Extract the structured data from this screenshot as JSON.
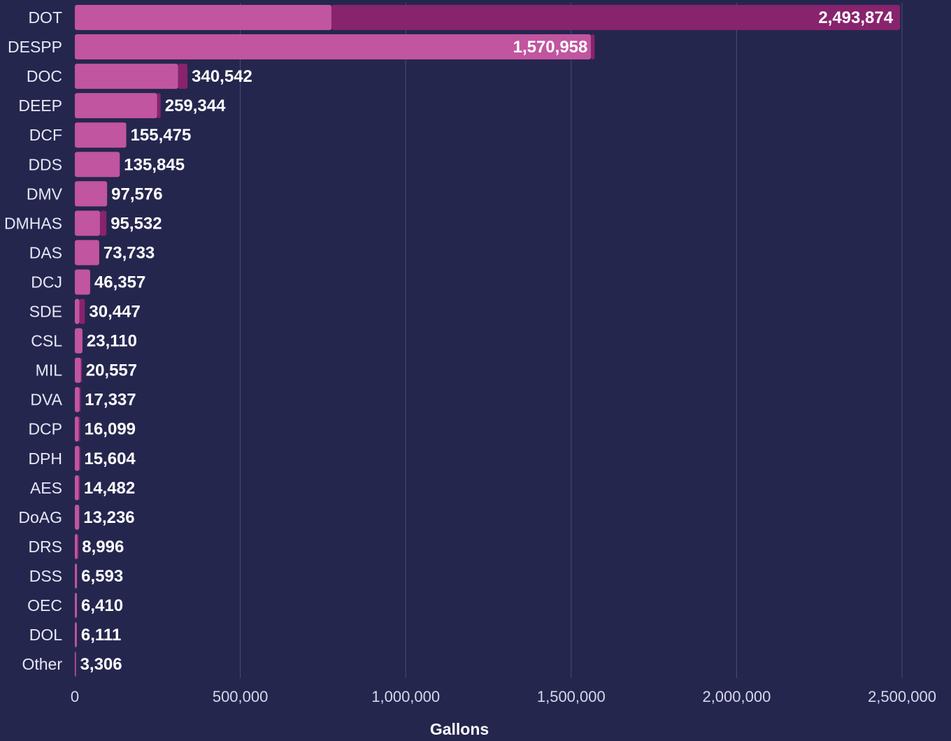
{
  "chart_data": {
    "type": "bar",
    "orientation": "horizontal",
    "stacked": true,
    "xlabel": "Gallons",
    "xlim": [
      0,
      2500000
    ],
    "x_ticks": [
      0,
      500000,
      1000000,
      1500000,
      2000000,
      2500000
    ],
    "x_tick_labels": [
      "0",
      "500,000",
      "1,000,000",
      "1,500,000",
      "2,000,000",
      "2,500,000"
    ],
    "grid": true,
    "categories": [
      "DOT",
      "DESPP",
      "DOC",
      "DEEP",
      "DCF",
      "DDS",
      "DMV",
      "DMHAS",
      "DAS",
      "DCJ",
      "SDE",
      "CSL",
      "MIL",
      "DVA",
      "DCP",
      "DPH",
      "AES",
      "DoAG",
      "DRS",
      "DSS",
      "OEC",
      "DOL",
      "Other"
    ],
    "totals": [
      2493874,
      1570958,
      340542,
      259344,
      155475,
      135845,
      97576,
      95532,
      73733,
      46357,
      30447,
      23110,
      20557,
      17337,
      16099,
      15604,
      14482,
      13236,
      8996,
      6593,
      6410,
      6111,
      3306
    ],
    "total_labels": [
      "2,493,874",
      "1,570,958",
      "340,542",
      "259,344",
      "155,475",
      "135,845",
      "97,576",
      "95,532",
      "73,733",
      "46,357",
      "30,447",
      "23,110",
      "20,557",
      "17,337",
      "16,099",
      "15,604",
      "14,482",
      "13,236",
      "8,996",
      "6,593",
      "6,410",
      "6,111",
      "3,306"
    ],
    "series": [
      {
        "color": "#c1559f",
        "values": [
          776000,
          1560000,
          312000,
          249000,
          155475,
          135845,
          97576,
          76000,
          73733,
          46357,
          14000,
          23110,
          18500,
          14500,
          12000,
          13500,
          12000,
          13236,
          8000,
          6593,
          6410,
          6111,
          3306
        ]
      },
      {
        "color": "#88236e",
        "values": [
          1717874,
          10958,
          28542,
          10344,
          0,
          0,
          0,
          19532,
          0,
          0,
          16447,
          0,
          2057,
          2837,
          4099,
          2104,
          2482,
          0,
          996,
          0,
          0,
          0,
          0
        ]
      }
    ]
  }
}
